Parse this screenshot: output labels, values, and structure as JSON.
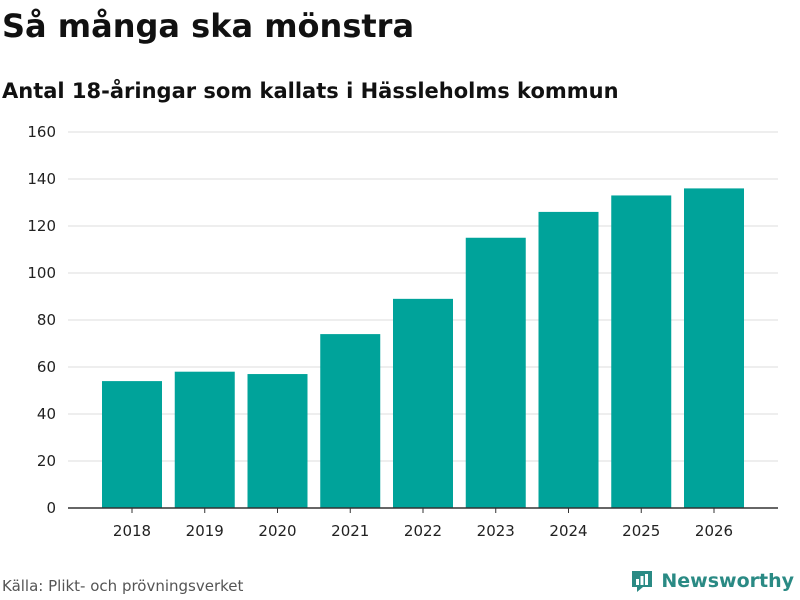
{
  "header": {
    "title": "Så många ska mönstra",
    "subtitle": "Antal 18-åringar som kallats i Hässleholms kommun"
  },
  "footer": {
    "source": "Källa: Plikt- och prövningsverket",
    "brand": "Newsworthy",
    "brand_icon": "bar-chart-logo-icon"
  },
  "colors": {
    "bar": "#00a39a",
    "grid": "#dddddd",
    "axis": "#333333",
    "brand": "#2a8a84"
  },
  "chart_data": {
    "type": "bar",
    "title": "Så många ska mönstra",
    "subtitle": "Antal 18-åringar som kallats i Hässleholms kommun",
    "xlabel": "",
    "ylabel": "",
    "categories": [
      "2018",
      "2019",
      "2020",
      "2021",
      "2022",
      "2023",
      "2024",
      "2025",
      "2026"
    ],
    "values": [
      54,
      58,
      57,
      74,
      89,
      115,
      126,
      133,
      136
    ],
    "ylim": [
      0,
      160
    ],
    "yticks": [
      0,
      20,
      40,
      60,
      80,
      100,
      120,
      140,
      160
    ],
    "grid": true,
    "legend": "none"
  }
}
